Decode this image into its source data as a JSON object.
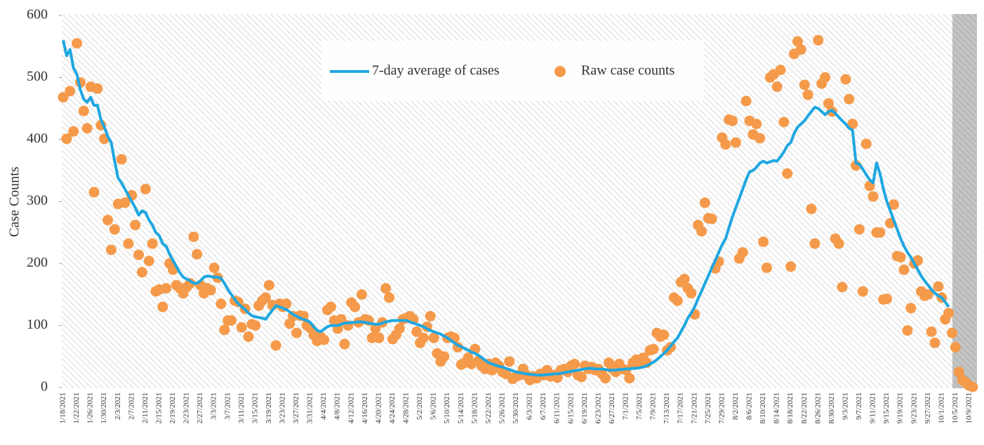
{
  "chart_data": {
    "type": "line_scatter",
    "y_label": "Case Counts",
    "categories": [
      "1/18/2021",
      null,
      null,
      null,
      "1/22/2021",
      null,
      null,
      null,
      "1/26/2021",
      null,
      null,
      null,
      "1/30/2021",
      null,
      null,
      null,
      "2/3/2021",
      null,
      null,
      null,
      "2/7/2021",
      null,
      null,
      null,
      "2/11/2021",
      null,
      null,
      null,
      "2/15/2021",
      null,
      null,
      null,
      "2/19/2021",
      null,
      null,
      null,
      "2/23/2021",
      null,
      null,
      null,
      "2/27/2021",
      null,
      null,
      null,
      "3/3/2021",
      null,
      null,
      null,
      "3/7/2021",
      null,
      null,
      null,
      "3/11/2021",
      null,
      null,
      null,
      "3/15/2021",
      null,
      null,
      null,
      "3/19/2021",
      null,
      null,
      null,
      "3/23/2021",
      null,
      null,
      null,
      "3/27/2021",
      null,
      null,
      null,
      "3/31/2021",
      null,
      null,
      null,
      "4/4/2021",
      null,
      null,
      null,
      "4/8/2021",
      null,
      null,
      null,
      "4/12/2021",
      null,
      null,
      null,
      "4/16/2021",
      null,
      null,
      null,
      "4/20/2021",
      null,
      null,
      null,
      "4/24/2021",
      null,
      null,
      null,
      "4/28/2021",
      null,
      null,
      null,
      "5/2/2021",
      null,
      null,
      null,
      "5/6/2021",
      null,
      null,
      null,
      "5/10/2021",
      null,
      null,
      null,
      "5/14/2021",
      null,
      null,
      null,
      "5/18/2021",
      null,
      null,
      null,
      "5/22/2021",
      null,
      null,
      null,
      "5/26/2021",
      null,
      null,
      null,
      "5/30/2021",
      null,
      null,
      null,
      "6/3/2021",
      null,
      null,
      null,
      "6/7/2021",
      null,
      null,
      null,
      "6/11/2021",
      null,
      null,
      null,
      "6/15/2021",
      null,
      null,
      null,
      "6/19/2021",
      null,
      null,
      null,
      "6/23/2021",
      null,
      null,
      null,
      "6/27/2021",
      null,
      null,
      null,
      "7/1/2021",
      null,
      null,
      null,
      "7/5/2021",
      null,
      null,
      null,
      "7/9/2021",
      null,
      null,
      null,
      "7/13/2021",
      null,
      null,
      null,
      "7/17/2021",
      null,
      null,
      null,
      "7/21/2021",
      null,
      null,
      null,
      "7/25/2021",
      null,
      null,
      null,
      "7/29/2021",
      null,
      null,
      null,
      "8/2/2021",
      null,
      null,
      null,
      "8/6/2021",
      null,
      null,
      null,
      "8/10/2021",
      null,
      null,
      null,
      "8/14/2021",
      null,
      null,
      null,
      "8/18/2021",
      null,
      null,
      null,
      "8/22/2021",
      null,
      null,
      null,
      "8/26/2021",
      null,
      null,
      null,
      "8/30/2021",
      null,
      null,
      null,
      "9/3/2021",
      null,
      null,
      null,
      "9/7/2021",
      null,
      null,
      null,
      "9/11/2021",
      null,
      null,
      null,
      "9/15/2021",
      null,
      null,
      null,
      "9/19/2021",
      null,
      null,
      null,
      "9/23/2021",
      null,
      null,
      null,
      "9/27/2021",
      null,
      null,
      null,
      "10/1/2021",
      null,
      null,
      null,
      "10/5/2021",
      null,
      null,
      null,
      "10/9/2021",
      null
    ],
    "series": [
      {
        "name": "7-day average of cases",
        "kind": "line",
        "color": "#1ea7e1",
        "values": [
          560,
          535,
          545,
          515,
          505,
          480,
          465,
          460,
          468,
          455,
          455,
          432,
          420,
          405,
          395,
          365,
          338,
          330,
          320,
          310,
          300,
          290,
          278,
          285,
          282,
          270,
          262,
          250,
          245,
          232,
          228,
          215,
          205,
          195,
          185,
          178,
          175,
          172,
          168,
          168,
          172,
          178,
          180,
          179,
          178,
          178,
          176,
          168,
          158,
          150,
          142,
          135,
          130,
          126,
          120,
          116,
          114,
          113,
          112,
          110,
          118,
          125,
          132,
          130,
          128,
          126,
          122,
          118,
          115,
          112,
          110,
          108,
          105,
          98,
          92,
          90,
          94,
          98,
          100,
          100,
          100,
          102,
          104,
          104,
          105,
          105,
          106,
          106,
          105,
          104,
          103,
          102,
          102,
          104,
          106,
          107,
          108,
          108,
          108,
          108,
          108,
          106,
          104,
          102,
          100,
          98,
          95,
          92,
          90,
          88,
          86,
          83,
          80,
          76,
          72,
          68,
          66,
          63,
          60,
          57,
          55,
          52,
          48,
          44,
          40,
          38,
          36,
          34,
          33,
          31,
          29,
          27,
          25,
          24,
          23,
          22,
          21,
          21,
          20,
          20,
          20,
          21,
          21,
          22,
          22,
          23,
          24,
          25,
          26,
          27,
          28,
          29,
          30,
          31,
          31,
          30,
          30,
          30,
          29,
          28,
          28,
          28,
          29,
          29,
          30,
          30,
          31,
          31,
          32,
          33,
          35,
          38,
          41,
          45,
          50,
          55,
          60,
          67,
          74,
          80,
          90,
          100,
          112,
          120,
          130,
          143,
          155,
          168,
          180,
          193,
          205,
          218,
          230,
          240,
          258,
          275,
          290,
          305,
          320,
          335,
          348,
          350,
          355,
          362,
          365,
          362,
          364,
          366,
          365,
          372,
          380,
          390,
          395,
          410,
          420,
          425,
          430,
          438,
          445,
          452,
          450,
          445,
          440,
          445,
          447,
          442,
          436,
          430,
          425,
          418,
          415,
          362,
          360,
          352,
          343,
          335,
          330,
          362,
          345,
          320,
          300,
          285,
          270,
          255,
          240,
          228,
          218,
          210,
          200,
          190,
          180,
          172,
          165,
          158,
          152,
          148,
          145,
          138,
          130,
          null,
          null,
          null,
          null,
          null,
          null,
          null
        ]
      },
      {
        "name": "Raw case counts",
        "kind": "scatter",
        "color": "#f59a4a",
        "values": [
          468,
          401,
          478,
          413,
          555,
          492,
          446,
          418,
          485,
          315,
          482,
          423,
          401,
          270,
          222,
          255,
          296,
          368,
          298,
          232,
          310,
          262,
          214,
          186,
          320,
          204,
          232,
          155,
          158,
          130,
          160,
          200,
          190,
          165,
          160,
          152,
          162,
          168,
          243,
          215,
          165,
          152,
          160,
          157,
          193,
          177,
          135,
          93,
          108,
          108,
          140,
          138,
          97,
          127,
          82,
          102,
          100,
          132,
          140,
          145,
          165,
          133,
          68,
          135,
          130,
          135,
          103,
          115,
          88,
          116,
          115,
          100,
          96,
          85,
          75,
          82,
          77,
          125,
          130,
          108,
          95,
          110,
          70,
          100,
          137,
          130,
          105,
          150,
          110,
          108,
          80,
          95,
          80,
          105,
          160,
          145,
          78,
          85,
          95,
          110,
          112,
          115,
          110,
          90,
          72,
          80,
          98,
          115,
          80,
          55,
          42,
          50,
          80,
          82,
          80,
          65,
          37,
          40,
          48,
          38,
          62,
          43,
          35,
          30,
          38,
          28,
          40,
          35,
          25,
          22,
          42,
          14,
          18,
          20,
          30,
          20,
          12,
          18,
          15,
          22,
          20,
          28,
          18,
          20,
          16,
          28,
          30,
          25,
          35,
          38,
          20,
          17,
          35,
          30,
          33,
          28,
          30,
          22,
          15,
          40,
          30,
          25,
          38,
          30,
          28,
          15,
          40,
          45,
          38,
          48,
          40,
          60,
          62,
          88,
          82,
          85,
          60,
          65,
          145,
          140,
          170,
          175,
          160,
          152,
          118,
          262,
          252,
          298,
          273,
          272,
          192,
          203,
          403,
          392,
          432,
          430,
          395,
          208,
          218,
          462,
          430,
          408,
          425,
          402,
          235,
          193,
          500,
          505,
          485,
          512,
          428,
          345,
          195,
          538,
          558,
          545,
          488,
          472,
          288,
          232,
          560,
          490,
          500,
          458,
          445,
          240,
          232,
          162,
          497,
          465,
          425,
          358,
          255,
          155,
          393,
          325,
          308,
          250,
          250,
          142,
          143,
          265,
          295,
          212,
          210,
          190,
          92,
          128,
          200,
          205,
          155,
          148,
          150,
          90,
          72,
          163,
          145,
          110,
          120,
          88,
          65,
          25,
          12,
          8,
          3,
          1
        ]
      }
    ],
    "ylim": [
      0,
      600
    ],
    "yticks": [
      0,
      100,
      200,
      300,
      400,
      500,
      600
    ],
    "grid": false,
    "legend": "top"
  }
}
